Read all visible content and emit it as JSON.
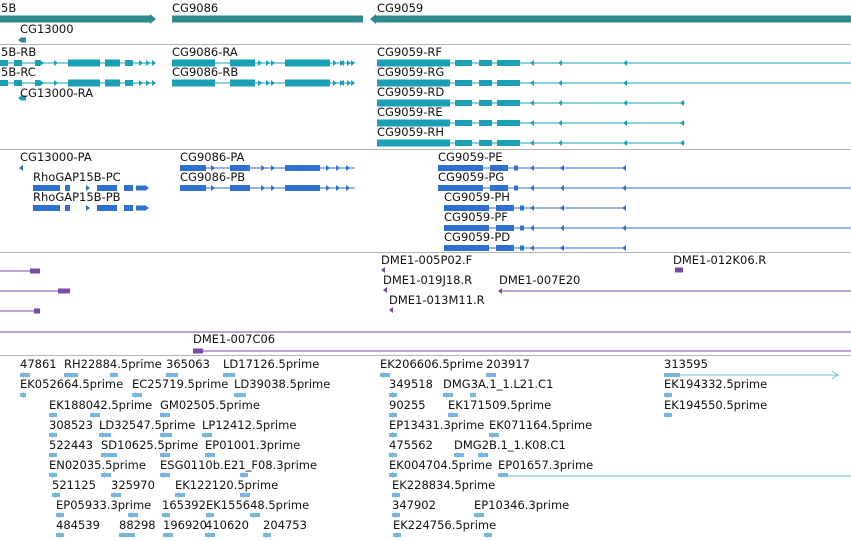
{
  "colors": {
    "gene": "#2e8b8b",
    "transcript": "#1aa0b4",
    "protein": "#2f6fcf",
    "clone": "#7b4aa8",
    "est": "#79b6dc",
    "divider": "#b5b5b5"
  },
  "genes": [
    {
      "id": "rhogap15b",
      "label": "5B",
      "partial": true
    },
    {
      "id": "cg13000",
      "label": "CG13000"
    },
    {
      "id": "cg9086",
      "label": "CG9086"
    },
    {
      "id": "cg9059",
      "label": "CG9059"
    }
  ],
  "transcripts": [
    {
      "id": "rhogap15b-rb",
      "label": "5B-RB"
    },
    {
      "id": "rhogap15b-rc",
      "label": "5B-RC"
    },
    {
      "id": "cg13000-ra",
      "label": "CG13000-RA"
    },
    {
      "id": "cg9086-ra",
      "label": "CG9086-RA"
    },
    {
      "id": "cg9086-rb",
      "label": "CG9086-RB"
    },
    {
      "id": "cg9059-rf",
      "label": "CG9059-RF"
    },
    {
      "id": "cg9059-rg",
      "label": "CG9059-RG"
    },
    {
      "id": "cg9059-rd",
      "label": "CG9059-RD"
    },
    {
      "id": "cg9059-re",
      "label": "CG9059-RE"
    },
    {
      "id": "cg9059-rh",
      "label": "CG9059-RH"
    }
  ],
  "proteins": [
    {
      "id": "cg13000-pa",
      "label": "CG13000-PA"
    },
    {
      "id": "rhogap15b-pc",
      "label": "RhoGAP15B-PC"
    },
    {
      "id": "rhogap15b-pb",
      "label": "RhoGAP15B-PB"
    },
    {
      "id": "cg9086-pa",
      "label": "CG9086-PA"
    },
    {
      "id": "cg9086-pb",
      "label": "CG9086-PB"
    },
    {
      "id": "cg9059-pe",
      "label": "CG9059-PE"
    },
    {
      "id": "cg9059-pg",
      "label": "CG9059-PG"
    },
    {
      "id": "cg9059-ph",
      "label": "CG9059-PH"
    },
    {
      "id": "cg9059-pf",
      "label": "CG9059-PF"
    },
    {
      "id": "cg9059-pd",
      "label": "CG9059-PD"
    }
  ],
  "clones": [
    {
      "id": "dme1-005p02",
      "label": "DME1-005P02.F"
    },
    {
      "id": "dme1-019j18",
      "label": "DME1-019J18.R"
    },
    {
      "id": "dme1-013m11",
      "label": "DME1-013M11.R"
    },
    {
      "id": "dme1-007e20",
      "label": "DME1-007E20"
    },
    {
      "id": "dme1-012k06",
      "label": "DME1-012K06.R"
    },
    {
      "id": "dme1-007c06",
      "label": "DME1-007C06"
    }
  ],
  "ests": [
    "47861",
    "RH22884.5prime",
    "365063",
    "LD17126.5prime",
    "EK052664.5prime",
    "EC25719.5prime",
    "LD39038.5prime",
    "EK188042.5prime",
    "GM02505.5prime",
    "308523",
    "LD32547.5prime",
    "LP12412.5prime",
    "522443",
    "SD10625.5prime",
    "EP01001.3prime",
    "EN02035.5prime",
    "ESG0110b.E21_F08.3prime",
    "521125",
    "325970",
    "EK122120.5prime",
    "EP05933.3prime",
    "165392",
    "EK155648.5prime",
    "484539",
    "88298",
    "196920",
    "410620",
    "204753",
    "EK206606.5prime",
    "203917",
    "349518",
    "DMG3A.1_1.L21.C1",
    "90255",
    "EK171509.5prime",
    "EP13431.3prime",
    "EK071164.5prime",
    "475562",
    "DMG2B.1_1.K08.C1",
    "EK004704.5prime",
    "EP01657.3prime",
    "EK228834.5prime",
    "347902",
    "EP10346.3prime",
    "EK224756.5prime",
    "313595",
    "EK194332.5prime",
    "EK194550.5prime"
  ]
}
